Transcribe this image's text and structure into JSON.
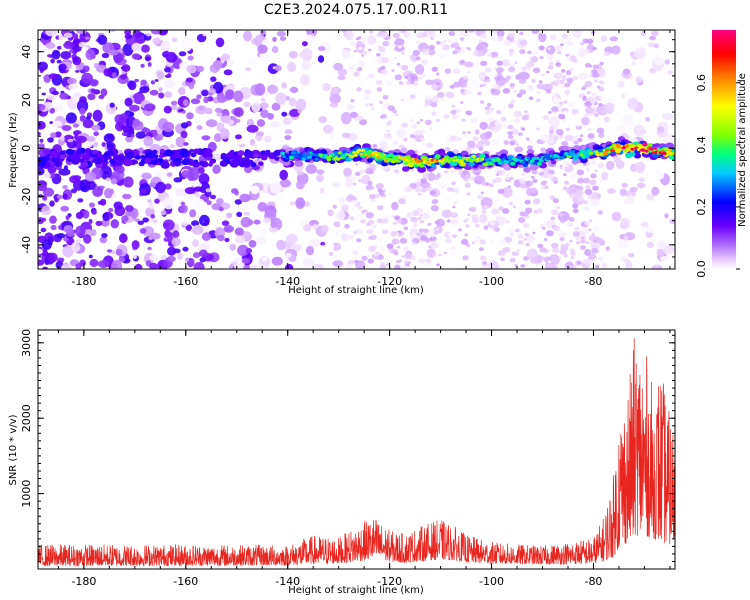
{
  "title": "C2E3.2024.075.17.00.R11",
  "chart_data": [
    {
      "type": "heatmap",
      "xlabel": "Height of straight line (km)",
      "ylabel": "Frequency (Hz)",
      "xlim": [
        -189,
        -64
      ],
      "ylim": [
        -50,
        49
      ],
      "xticks": [
        -180,
        -160,
        -140,
        -120,
        -100,
        -80
      ],
      "yticks": [
        -40,
        -20,
        0,
        20,
        40
      ],
      "colorbar": {
        "label": "Normalized spectral amplitude",
        "range": [
          0,
          0.77
        ],
        "ticks": [
          0.0,
          0.2,
          0.4,
          0.6
        ]
      },
      "ridge": {
        "x": [
          -140,
          -130,
          -125,
          -120,
          -115,
          -110,
          -105,
          -100,
          -95,
          -90,
          -85,
          -80,
          -75,
          -70,
          -65
        ],
        "y": [
          -3,
          -3,
          -2,
          -4,
          -6,
          -5,
          -5,
          -5,
          -5,
          -5,
          -3,
          -2,
          0,
          0,
          -2
        ],
        "amplitude": [
          0.28,
          0.38,
          0.5,
          0.48,
          0.55,
          0.52,
          0.45,
          0.35,
          0.3,
          0.3,
          0.33,
          0.4,
          0.62,
          0.72,
          0.55
        ]
      }
    },
    {
      "type": "line",
      "xlabel": "Height of straight line (km)",
      "ylabel": "SNR (10 * v/v)",
      "xlim": [
        -189,
        -64
      ],
      "ylim": [
        0,
        3170
      ],
      "xticks": [
        -180,
        -160,
        -140,
        -120,
        -100,
        -80
      ],
      "yticks": [
        1000,
        2000,
        3000
      ],
      "color": "#e8251f",
      "envelope": {
        "x": [
          -189,
          -160,
          -140,
          -135,
          -130,
          -125,
          -123,
          -120,
          -117,
          -115,
          -112,
          -110,
          -107,
          -105,
          -100,
          -95,
          -90,
          -85,
          -80,
          -78,
          -76,
          -75,
          -73,
          -72,
          -70,
          -68,
          -67,
          -65,
          -64
        ],
        "base": [
          100,
          110,
          120,
          170,
          180,
          280,
          380,
          240,
          200,
          240,
          290,
          310,
          280,
          220,
          180,
          160,
          150,
          160,
          180,
          250,
          400,
          700,
          900,
          1100,
          1100,
          1000,
          900,
          800,
          800
        ],
        "peak": [
          330,
          330,
          320,
          450,
          420,
          640,
          700,
          520,
          470,
          540,
          620,
          660,
          560,
          460,
          360,
          330,
          310,
          360,
          420,
          700,
          1300,
          2100,
          2500,
          3100,
          3000,
          2300,
          2750,
          2050,
          1900
        ]
      }
    }
  ]
}
